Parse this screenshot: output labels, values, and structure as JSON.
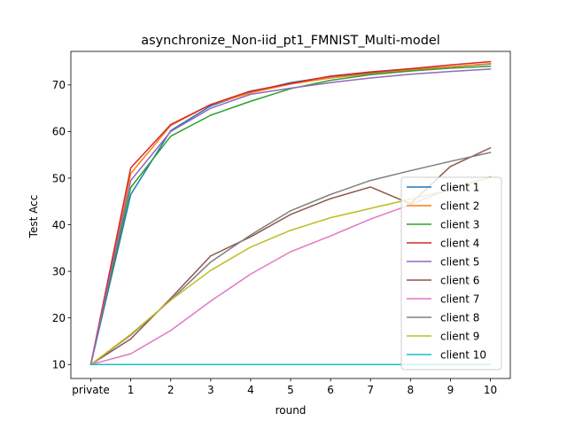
{
  "chart_data": {
    "type": "line",
    "title": "asynchronize_Non-iid_pt1_FMNIST_Multi-model",
    "xlabel": "round",
    "ylabel": "Test Acc",
    "categories": [
      "private",
      "1",
      "2",
      "3",
      "4",
      "5",
      "6",
      "7",
      "8",
      "9",
      "10"
    ],
    "ylim": [
      7.0,
      77.2
    ],
    "yticks": [
      10,
      20,
      30,
      40,
      50,
      60,
      70
    ],
    "grid": false,
    "legend_position": "lower-right",
    "series": [
      {
        "name": "client 1",
        "color": "#1f77b4",
        "values": [
          10,
          46.5,
          60.2,
          65.5,
          68.5,
          70.5,
          71.8,
          72.6,
          73.3,
          73.9,
          74.5
        ]
      },
      {
        "name": "client 2",
        "color": "#ff7f0e",
        "values": [
          10,
          51.0,
          61.3,
          65.8,
          68.3,
          70.2,
          71.5,
          72.4,
          73.2,
          73.9,
          74.6
        ]
      },
      {
        "name": "client 3",
        "color": "#2ca02c",
        "values": [
          10,
          48.0,
          59.0,
          63.5,
          66.5,
          69.2,
          71.0,
          72.2,
          73.0,
          73.6,
          74.0
        ]
      },
      {
        "name": "client 4",
        "color": "#d62728",
        "values": [
          10,
          52.2,
          61.5,
          65.8,
          68.7,
          70.3,
          71.9,
          72.8,
          73.5,
          74.3,
          75.0
        ]
      },
      {
        "name": "client 5",
        "color": "#9467bd",
        "values": [
          10,
          49.5,
          60.0,
          65.0,
          68.0,
          69.3,
          70.5,
          71.5,
          72.3,
          72.9,
          73.4
        ]
      },
      {
        "name": "client 6",
        "color": "#8c564b",
        "values": [
          10,
          15.5,
          24.2,
          33.3,
          37.4,
          42.2,
          45.6,
          48.1,
          44.5,
          52.5,
          56.5
        ]
      },
      {
        "name": "client 7",
        "color": "#e377c2",
        "values": [
          10,
          12.3,
          17.3,
          23.6,
          29.4,
          34.2,
          37.6,
          41.2,
          44.3,
          47.8,
          50.2
        ]
      },
      {
        "name": "client 8",
        "color": "#7f7f7f",
        "values": [
          10,
          16.3,
          23.8,
          32.0,
          37.8,
          43.0,
          46.5,
          49.5,
          51.6,
          53.6,
          55.5
        ]
      },
      {
        "name": "client 9",
        "color": "#bcbd22",
        "values": [
          10,
          16.5,
          23.8,
          30.2,
          35.2,
          38.8,
          41.5,
          43.5,
          45.5,
          47.5,
          50.3
        ]
      },
      {
        "name": "client 10",
        "color": "#17becf",
        "values": [
          10,
          10,
          10,
          10,
          10,
          10,
          10,
          10,
          10,
          10,
          10
        ]
      }
    ]
  }
}
